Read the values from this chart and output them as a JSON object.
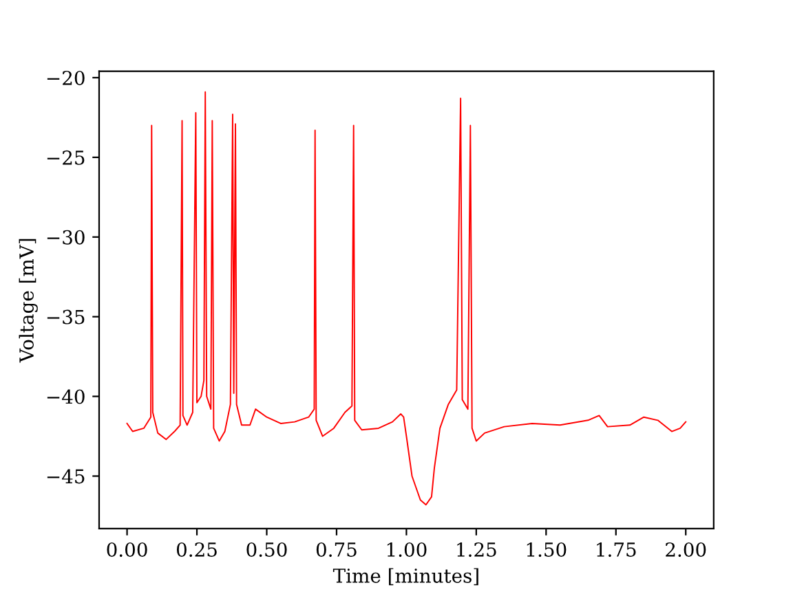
{
  "chart_data": {
    "type": "line",
    "xlabel": "Time [minutes]",
    "ylabel": "Voltage [mV]",
    "xlim": [
      -0.1,
      2.1
    ],
    "ylim": [
      -48.3,
      -19.6
    ],
    "xticks": [
      {
        "value": 0,
        "label": "0.00"
      },
      {
        "value": 0.25,
        "label": "0.25"
      },
      {
        "value": 0.5,
        "label": "0.50"
      },
      {
        "value": 0.75,
        "label": "0.75"
      },
      {
        "value": 1,
        "label": "1.00"
      },
      {
        "value": 1.25,
        "label": "1.25"
      },
      {
        "value": 1.5,
        "label": "1.50"
      },
      {
        "value": 1.75,
        "label": "1.75"
      },
      {
        "value": 2,
        "label": "2.00"
      }
    ],
    "yticks": [
      {
        "value": -45,
        "label": "−45"
      },
      {
        "value": -40,
        "label": "−40"
      },
      {
        "value": -35,
        "label": "−35"
      },
      {
        "value": -30,
        "label": "−30"
      },
      {
        "value": -25,
        "label": "−25"
      },
      {
        "value": -20,
        "label": "−20"
      }
    ],
    "grid": false,
    "marker": "none",
    "line_style": "solid",
    "series": [
      {
        "color": "#ff0000",
        "x": [
          0.0,
          0.02,
          0.06,
          0.085,
          0.088,
          0.092,
          0.11,
          0.14,
          0.17,
          0.19,
          0.197,
          0.2,
          0.215,
          0.235,
          0.246,
          0.25,
          0.265,
          0.275,
          0.28,
          0.285,
          0.3,
          0.305,
          0.31,
          0.33,
          0.35,
          0.37,
          0.378,
          0.382,
          0.388,
          0.392,
          0.41,
          0.44,
          0.46,
          0.5,
          0.55,
          0.6,
          0.65,
          0.67,
          0.673,
          0.677,
          0.7,
          0.74,
          0.78,
          0.805,
          0.811,
          0.815,
          0.84,
          0.9,
          0.95,
          0.98,
          0.99,
          1.0,
          1.02,
          1.05,
          1.07,
          1.09,
          1.1,
          1.12,
          1.15,
          1.18,
          1.194,
          1.2,
          1.22,
          1.229,
          1.235,
          1.25,
          1.28,
          1.35,
          1.45,
          1.55,
          1.65,
          1.69,
          1.72,
          1.8,
          1.85,
          1.9,
          1.95,
          1.98,
          2.0
        ],
        "values": [
          -41.7,
          -42.2,
          -42.0,
          -41.3,
          -23.0,
          -41.0,
          -42.3,
          -42.7,
          -42.2,
          -41.8,
          -22.7,
          -41.2,
          -41.8,
          -41.0,
          -22.2,
          -40.4,
          -40.0,
          -39.0,
          -20.9,
          -40.0,
          -40.8,
          -22.7,
          -42.0,
          -42.8,
          -42.2,
          -40.5,
          -22.3,
          -39.8,
          -22.9,
          -40.5,
          -41.8,
          -41.8,
          -40.8,
          -41.3,
          -41.7,
          -41.6,
          -41.3,
          -40.8,
          -23.3,
          -41.5,
          -42.5,
          -42.0,
          -41.0,
          -40.6,
          -23.0,
          -41.5,
          -42.1,
          -42.0,
          -41.6,
          -41.1,
          -41.3,
          -42.5,
          -45.0,
          -46.5,
          -46.8,
          -46.3,
          -44.5,
          -42.0,
          -40.5,
          -39.6,
          -21.3,
          -40.2,
          -40.8,
          -23.0,
          -42.0,
          -42.8,
          -42.3,
          -41.9,
          -41.7,
          -41.8,
          -41.5,
          -41.2,
          -41.9,
          -41.8,
          -41.3,
          -41.5,
          -42.2,
          -42.0,
          -41.6
        ]
      }
    ]
  }
}
